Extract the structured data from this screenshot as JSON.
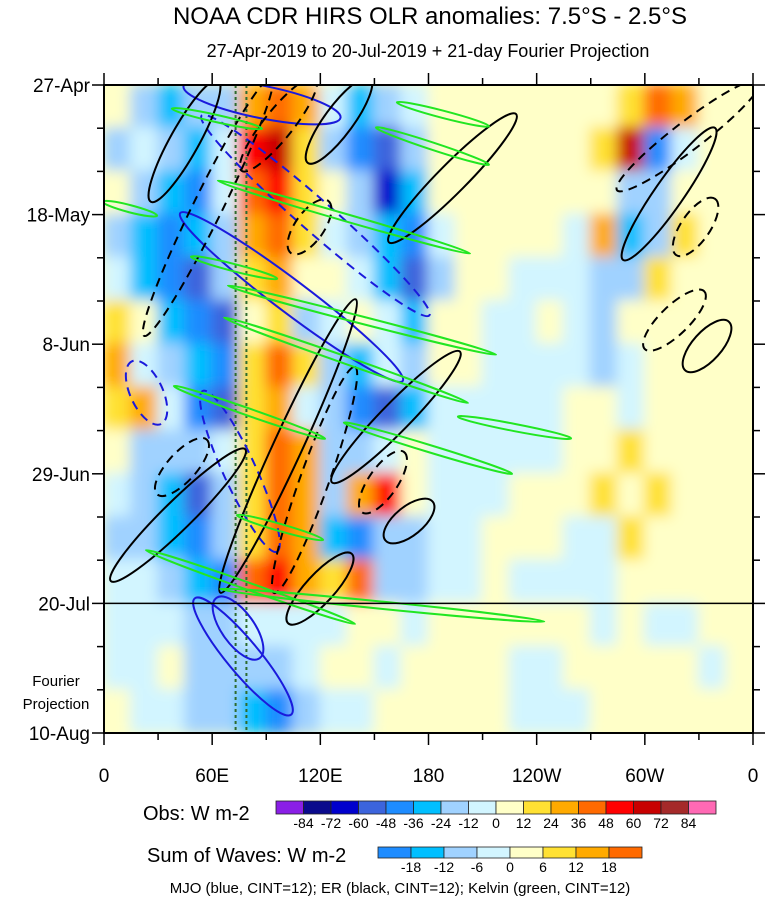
{
  "chart_data": {
    "type": "heatmap",
    "title": "NOAA CDR HIRS OLR anomalies: 7.5°S - 2.5°S",
    "subtitle": "27-Apr-2019 to 20-Jul-2019 + 21-day Fourier Projection",
    "x_ticks": [
      {
        "lon": 0,
        "label": "0"
      },
      {
        "lon": 60,
        "label": "60E"
      },
      {
        "lon": 120,
        "label": "120E"
      },
      {
        "lon": 180,
        "label": "180"
      },
      {
        "lon": 240,
        "label": "120W"
      },
      {
        "lon": 300,
        "label": "60W"
      },
      {
        "lon": 360,
        "label": "0"
      }
    ],
    "y_ticks": [
      {
        "day": 0,
        "label": "27-Apr"
      },
      {
        "day": 21,
        "label": "18-May"
      },
      {
        "day": 42,
        "label": "8-Jun"
      },
      {
        "day": 63,
        "label": "29-Jun"
      },
      {
        "day": 84,
        "label": "20-Jul"
      },
      {
        "day": 105,
        "label": "10-Aug"
      }
    ],
    "xlim": [
      0,
      360
    ],
    "ylim_days": [
      0,
      105
    ],
    "obs_end_day": 84,
    "projection_label": [
      "Fourier",
      "Projection"
    ],
    "grid": {
      "lon_step": 15,
      "day_step": 7,
      "values": [
        [
          10,
          -20,
          -30,
          -20,
          -20,
          30,
          40,
          30,
          -10,
          -30,
          -20,
          -10,
          5,
          0,
          0,
          0,
          0,
          0,
          5,
          20,
          40,
          30,
          10,
          5
        ],
        [
          -20,
          -10,
          -20,
          -30,
          -10,
          50,
          60,
          20,
          -20,
          -40,
          -60,
          -20,
          5,
          0,
          0,
          0,
          0,
          5,
          20,
          60,
          -40,
          -10,
          10,
          5
        ],
        [
          10,
          -20,
          -30,
          -40,
          -10,
          40,
          50,
          20,
          10,
          -20,
          -70,
          -30,
          0,
          0,
          0,
          0,
          0,
          5,
          10,
          -20,
          -20,
          10,
          10,
          10
        ],
        [
          -20,
          -30,
          -40,
          -30,
          -20,
          30,
          40,
          20,
          -10,
          -20,
          -30,
          -40,
          -10,
          0,
          0,
          0,
          0,
          -10,
          30,
          -30,
          -20,
          20,
          10,
          5
        ],
        [
          -10,
          -30,
          -40,
          -50,
          -20,
          20,
          30,
          10,
          10,
          -10,
          -30,
          -50,
          -20,
          10,
          0,
          -5,
          -5,
          -10,
          -20,
          -20,
          20,
          10,
          5,
          5
        ],
        [
          20,
          10,
          -30,
          -40,
          -50,
          10,
          20,
          -20,
          -10,
          10,
          -10,
          -30,
          10,
          0,
          -5,
          -5,
          0,
          -10,
          -20,
          10,
          10,
          5,
          5,
          10
        ],
        [
          30,
          -10,
          -20,
          -30,
          -40,
          20,
          40,
          20,
          -20,
          -30,
          -10,
          -20,
          10,
          0,
          -5,
          -5,
          -5,
          -10,
          -20,
          -10,
          10,
          10,
          10,
          0
        ],
        [
          20,
          30,
          -10,
          -40,
          -50,
          20,
          30,
          -10,
          -20,
          -40,
          -50,
          -30,
          -5,
          -5,
          -5,
          -5,
          -5,
          10,
          0,
          -10,
          10,
          10,
          0,
          0
        ],
        [
          10,
          -20,
          -20,
          -20,
          -10,
          20,
          40,
          30,
          -20,
          -20,
          -10,
          10,
          -5,
          -5,
          -5,
          -10,
          -5,
          10,
          10,
          20,
          10,
          5,
          5,
          5
        ],
        [
          -10,
          -20,
          -30,
          -50,
          -20,
          20,
          40,
          30,
          -20,
          30,
          50,
          10,
          -5,
          -5,
          -5,
          0,
          0,
          10,
          20,
          10,
          20,
          5,
          5,
          5
        ],
        [
          -20,
          -20,
          -30,
          -40,
          -20,
          20,
          40,
          30,
          -30,
          -40,
          -20,
          -20,
          -5,
          -5,
          0,
          0,
          0,
          -10,
          -10,
          20,
          10,
          10,
          5,
          5
        ],
        [
          -10,
          -10,
          -20,
          -30,
          -40,
          40,
          50,
          30,
          20,
          40,
          -20,
          -20,
          -5,
          -5,
          0,
          -5,
          -5,
          -5,
          -10,
          10,
          5,
          5,
          5,
          0
        ],
        [
          -5,
          -5,
          -3,
          -8,
          -8,
          -5,
          -5,
          -5,
          -5,
          5,
          5,
          -5,
          5,
          5,
          5,
          5,
          5,
          3,
          -3,
          5,
          -3,
          -3,
          3,
          3
        ],
        [
          -3,
          -5,
          5,
          -8,
          -12,
          -12,
          -8,
          -5,
          5,
          5,
          -5,
          5,
          5,
          5,
          5,
          -3,
          -3,
          5,
          5,
          3,
          3,
          3,
          -3,
          3
        ],
        [
          3,
          -3,
          -3,
          -8,
          -8,
          -15,
          -20,
          -8,
          -5,
          -5,
          3,
          5,
          5,
          3,
          3,
          -3,
          -3,
          -3,
          3,
          3,
          3,
          3,
          3,
          3
        ]
      ]
    },
    "obs_colorbar": {
      "label": "Obs: W m-2",
      "levels": [
        "-84",
        "-72",
        "-60",
        "-48",
        "-36",
        "-24",
        "-12",
        "0",
        "12",
        "24",
        "36",
        "48",
        "60",
        "72",
        "84"
      ],
      "level_values": [
        -84,
        -72,
        -60,
        -48,
        -36,
        -24,
        -12,
        0,
        12,
        24,
        36,
        48,
        60,
        72,
        84
      ],
      "colors": [
        "#8a1fe6",
        "#0a0a8c",
        "#0000cd",
        "#3c64dc",
        "#1e8cff",
        "#00bfff",
        "#a0d2ff",
        "#d2f5ff",
        "#ffffc8",
        "#ffe133",
        "#ffaa00",
        "#ff6a00",
        "#ff0000",
        "#c80000",
        "#a52a2a",
        "#ff69b4"
      ]
    },
    "waves_colorbar": {
      "label": "Sum of Waves: W m-2",
      "levels": [
        "-18",
        "-12",
        "-6",
        "0",
        "6",
        "12",
        "18"
      ],
      "level_values": [
        -18,
        -12,
        -6,
        0,
        6,
        12,
        18
      ],
      "colors": [
        "#1e8cff",
        "#00bfff",
        "#a0d2ff",
        "#d2f5ff",
        "#ffffc8",
        "#ffe133",
        "#ffaa00",
        "#ff6a00"
      ]
    },
    "reference_lines_lon": [
      73,
      79
    ],
    "reference_line_color": "#2e6b2e",
    "contours": {
      "mjo": {
        "color": "#1a1adc",
        "half_width_deg": 9,
        "items": [
          {
            "from": [
              46.6,
              21.7
            ],
            "to": [
              161.4,
              47.0
            ],
            "dashed": false
          },
          {
            "from": [
              58.2,
              6.0
            ],
            "to": [
              176.4,
              36.3
            ],
            "dashed": true
          },
          {
            "from": [
              17.8,
              46.2
            ],
            "to": [
              29.4,
              53.5
            ],
            "dashed": true
          },
          {
            "from": [
              53.8,
              84.4
            ],
            "to": [
              100.4,
              100.8
            ],
            "dashed": false
          },
          {
            "from": [
              65.5,
              84.4
            ],
            "to": [
              83.2,
              91.6
            ],
            "dashed": false
          },
          {
            "from": [
              57.1,
              51.0
            ],
            "to": [
              93.7,
              74.2
            ],
            "dashed": true
          },
          {
            "from": [
              49.4,
              0.5
            ],
            "to": [
              125.9,
              5.0
            ],
            "dashed": false
          }
        ]
      },
      "er": {
        "color": "#000000",
        "half_width_deg": 8,
        "items": [
          {
            "from": [
              28.3,
              17.7
            ],
            "to": [
              61.0,
              0.5
            ],
            "dashed": false
          },
          {
            "from": [
              161.4,
              24.5
            ],
            "to": [
              225.2,
              5.7
            ],
            "dashed": false
          },
          {
            "from": [
              129.8,
              63.4
            ],
            "to": [
              194.1,
              44.2
            ],
            "dashed": false
          },
          {
            "from": [
              7.2,
              79.4
            ],
            "to": [
              74.9,
              60.0
            ],
            "dashed": false
          },
          {
            "from": [
              290.7,
              27.2
            ],
            "to": [
              336.2,
              8.1
            ],
            "dashed": false
          },
          {
            "from": [
              288.4,
              16.2
            ],
            "to": [
              360,
              0.2
            ],
            "dashed": true
          },
          {
            "from": [
              325.6,
              45.2
            ],
            "to": [
              343.4,
              39.4
            ],
            "dashed": false
          },
          {
            "from": [
              303.4,
              41.8
            ],
            "to": [
              329.5,
              34.4
            ],
            "dashed": true
          },
          {
            "from": [
              320.1,
              26.4
            ],
            "to": [
              336.2,
              19.6
            ],
            "dashed": true
          },
          {
            "from": [
              24.4,
              39.4
            ],
            "to": [
              91.0,
              0.0
            ],
            "dashed": true
          },
          {
            "from": [
              66.6,
              81.0
            ],
            "to": [
              137.6,
              36.0
            ],
            "dashed": false
          },
          {
            "from": [
              96.0,
              81.0
            ],
            "to": [
              137.6,
              47.0
            ],
            "dashed": true
          },
          {
            "from": [
              145.9,
              68.1
            ],
            "to": [
              163.6,
              60.6
            ],
            "dashed": true
          },
          {
            "from": [
              159.8,
              72.9
            ],
            "to": [
              178.6,
              68.4
            ],
            "dashed": false
          },
          {
            "from": [
              105.4,
              86.2
            ],
            "to": [
              134.2,
              77.0
            ],
            "dashed": false
          },
          {
            "from": [
              79.3,
              12.8
            ],
            "to": [
              114.3,
              0.0
            ],
            "dashed": true
          },
          {
            "from": [
              106.5,
              26.1
            ],
            "to": [
              121.5,
              19.9
            ],
            "dashed": true
          },
          {
            "from": [
              32.7,
              65.3
            ],
            "to": [
              53.8,
              58.5
            ],
            "dashed": true
          },
          {
            "from": [
              115.9,
              11.5
            ],
            "to": [
              144.8,
              0.0
            ],
            "dashed": false
          }
        ]
      },
      "kelvin": {
        "color": "#22e622",
        "half_width_deg": 2,
        "items": [
          {
            "from": [
              64.3,
              15.6
            ],
            "to": [
              201.9,
              27.2
            ],
            "dashed": false
          },
          {
            "from": [
              152.0,
              7.0
            ],
            "to": [
              212.4,
              12.8
            ],
            "dashed": false
          },
          {
            "from": [
              163.6,
              2.9
            ],
            "to": [
              212.4,
              6.6
            ],
            "dashed": false
          },
          {
            "from": [
              49.4,
              27.9
            ],
            "to": [
              94.9,
              31.3
            ],
            "dashed": false
          },
          {
            "from": [
              69.9,
              32.6
            ],
            "to": [
              216.3,
              43.6
            ],
            "dashed": false
          },
          {
            "from": [
              67.7,
              37.8
            ],
            "to": [
              200.8,
              51.4
            ],
            "dashed": false
          },
          {
            "from": [
              39.9,
              48.9
            ],
            "to": [
              121.5,
              57.2
            ],
            "dashed": false
          },
          {
            "from": [
              134.2,
              54.8
            ],
            "to": [
              225.2,
              62.9
            ],
            "dashed": false
          },
          {
            "from": [
              197.5,
              53.8
            ],
            "to": [
              257.9,
              57.2
            ],
            "dashed": false
          },
          {
            "from": [
              24.4,
              75.5
            ],
            "to": [
              138.1,
              87.2
            ],
            "dashed": false
          },
          {
            "from": [
              74.9,
              69.8
            ],
            "to": [
              120.4,
              73.6
            ],
            "dashed": false
          },
          {
            "from": [
              65.5,
              81.7
            ],
            "to": [
              243.0,
              86.9
            ],
            "dashed": false
          },
          {
            "from": [
              0.5,
              19.0
            ],
            "to": [
              28.3,
              21.1
            ],
            "dashed": false
          },
          {
            "from": [
              38.8,
              3.9
            ],
            "to": [
              86.5,
              7.0
            ],
            "dashed": false
          }
        ]
      }
    },
    "footnote": "MJO (blue, CINT=12); ER (black, CINT=12); Kelvin (green, CINT=12)"
  }
}
